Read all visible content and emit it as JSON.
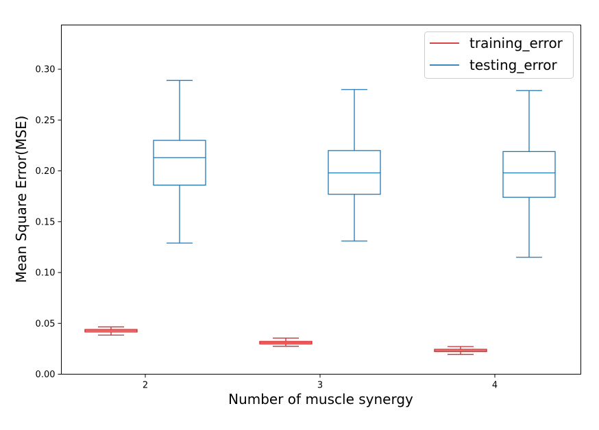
{
  "chart_data": {
    "type": "box",
    "xlabel": "Number of muscle synergy",
    "ylabel": "Mean Square Error(MSE)",
    "categories": [
      "2",
      "3",
      "4"
    ],
    "ylim": [
      0,
      0.3435
    ],
    "yticks": [
      "0.00",
      "0.05",
      "0.10",
      "0.15",
      "0.20",
      "0.25",
      "0.30"
    ],
    "legend_position": "top-right",
    "series": [
      {
        "name": "training_error",
        "color": "#d62728",
        "boxes": [
          {
            "category": "2",
            "whisker_low": 0.0385,
            "q1": 0.0415,
            "median": 0.0428,
            "q3": 0.044,
            "whisker_high": 0.0465
          },
          {
            "category": "3",
            "whisker_low": 0.0275,
            "q1": 0.0298,
            "median": 0.031,
            "q3": 0.0323,
            "whisker_high": 0.0355
          },
          {
            "category": "4",
            "whisker_low": 0.0195,
            "q1": 0.0222,
            "median": 0.0233,
            "q3": 0.0245,
            "whisker_high": 0.0272
          }
        ]
      },
      {
        "name": "testing_error",
        "color": "#1f77b4",
        "boxes": [
          {
            "category": "2",
            "whisker_low": 0.129,
            "q1": 0.186,
            "median": 0.213,
            "q3": 0.23,
            "whisker_high": 0.289
          },
          {
            "category": "3",
            "whisker_low": 0.131,
            "q1": 0.177,
            "median": 0.198,
            "q3": 0.22,
            "whisker_high": 0.28
          },
          {
            "category": "4",
            "whisker_low": 0.115,
            "q1": 0.174,
            "median": 0.198,
            "q3": 0.219,
            "whisker_high": 0.279
          }
        ]
      }
    ]
  }
}
